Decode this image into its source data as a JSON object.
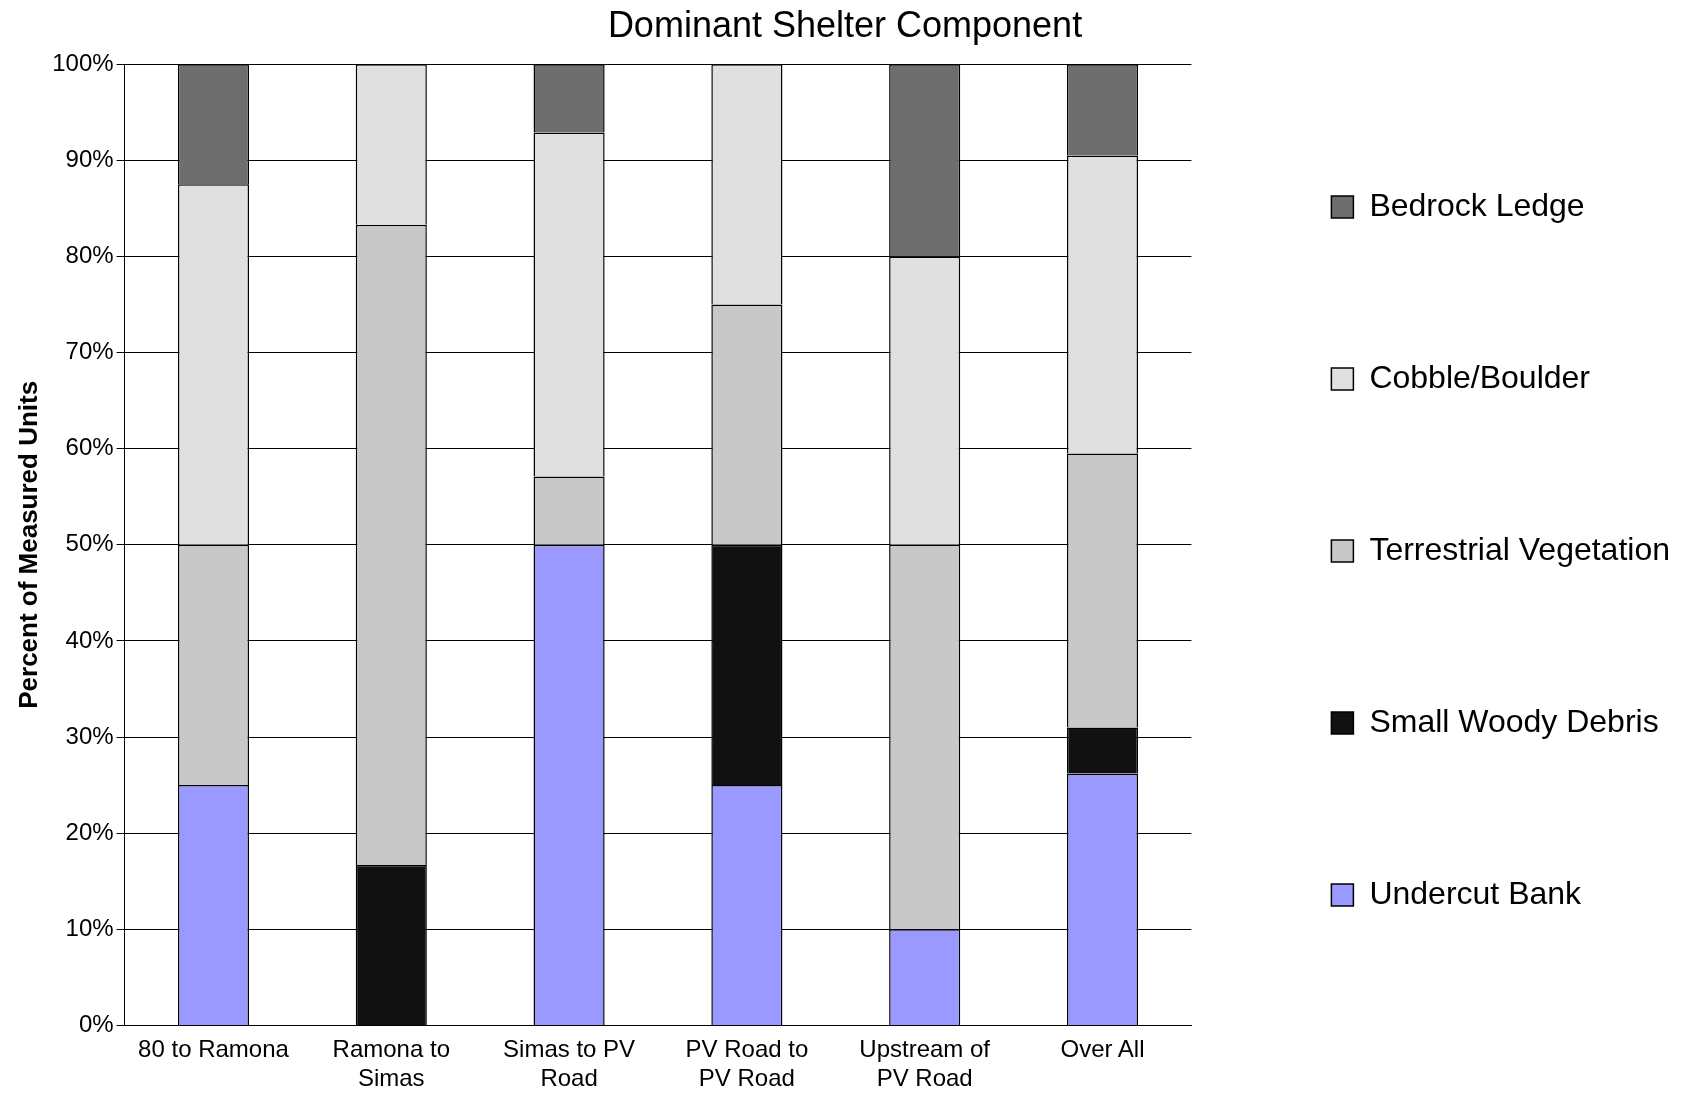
{
  "chart_data": {
    "type": "bar",
    "title": "Dominant Shelter Component",
    "ylabel": "Percent of Measured Units",
    "categories": [
      "80 to Ramona",
      "Ramona to Simas",
      "Simas to PV Road",
      "PV Road to PV Road",
      "Upstream of PV Road",
      "Over All"
    ],
    "stacked": true,
    "series": [
      {
        "name": "Undercut Bank",
        "color": "#9999ff",
        "values": [
          25,
          0,
          50,
          25,
          10,
          26.2
        ]
      },
      {
        "name": "Small Woody Debris",
        "color": "#111111",
        "values": [
          0,
          16.7,
          0,
          25,
          0,
          4.8
        ]
      },
      {
        "name": "Terrestrial Vegetation",
        "color": "#c8c8c8",
        "values": [
          25,
          66.6,
          7.1,
          25,
          40,
          28.5
        ]
      },
      {
        "name": "Cobble/Boulder",
        "color": "#e0e0e0",
        "values": [
          37.5,
          16.7,
          35.8,
          25,
          30,
          31
        ]
      },
      {
        "name": "Bedrock Ledge",
        "color": "#6e6e6e",
        "values": [
          12.5,
          0,
          7.1,
          0,
          20,
          9.5
        ]
      }
    ],
    "ylim": [
      0,
      100
    ],
    "yticks": [
      {
        "value": 0,
        "label": "0%"
      },
      {
        "value": 10,
        "label": "10%"
      },
      {
        "value": 20,
        "label": "20%"
      },
      {
        "value": 30,
        "label": "30%"
      },
      {
        "value": 40,
        "label": "40%"
      },
      {
        "value": 50,
        "label": "50%"
      },
      {
        "value": 60,
        "label": "60%"
      },
      {
        "value": 70,
        "label": "70%"
      },
      {
        "value": 80,
        "label": "80%"
      },
      {
        "value": 90,
        "label": "90%"
      },
      {
        "value": 100,
        "label": "100%"
      }
    ],
    "grid": "y",
    "legend": "right"
  }
}
